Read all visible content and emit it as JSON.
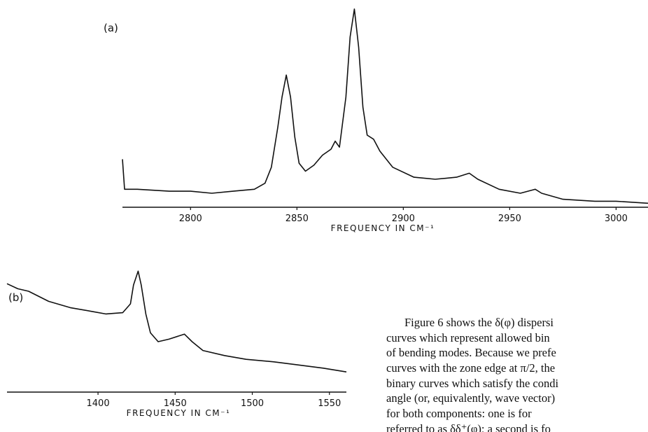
{
  "chart_data": [
    {
      "type": "line",
      "panel_label": "(a)",
      "x_label": "FREQUENCY IN CM⁻¹",
      "x": [
        2768,
        2769,
        2775,
        2790,
        2800,
        2810,
        2820,
        2830,
        2835,
        2838,
        2841,
        2843,
        2845,
        2847,
        2849,
        2851,
        2854,
        2858,
        2862,
        2866,
        2868,
        2870,
        2873,
        2875,
        2877,
        2879,
        2881,
        2883,
        2886,
        2889,
        2895,
        2905,
        2915,
        2925,
        2931,
        2935,
        2945,
        2955,
        2962,
        2965,
        2975,
        2990,
        3000,
        3015
      ],
      "values": [
        24,
        9,
        9,
        8,
        8,
        7,
        8,
        9,
        12,
        20,
        40,
        55,
        66,
        55,
        35,
        22,
        18,
        21,
        26,
        29,
        33,
        30,
        55,
        85,
        99,
        80,
        50,
        36,
        34,
        28,
        20,
        15,
        14,
        15,
        17,
        14,
        9,
        7,
        9,
        7,
        4,
        3,
        3,
        2
      ],
      "color": "#111111",
      "xlim": [
        2768,
        3015
      ],
      "ylim": [
        0,
        100
      ],
      "xticks": [
        2800,
        2850,
        2900,
        2950,
        3000
      ]
    },
    {
      "type": "line",
      "panel_label": "(b)",
      "x_label": "FREQUENCY IN CM⁻¹",
      "x": [
        1341,
        1348,
        1355,
        1368,
        1382,
        1396,
        1405,
        1416,
        1421,
        1423,
        1426,
        1428,
        1431,
        1434,
        1439,
        1446,
        1456,
        1461,
        1468,
        1482,
        1496,
        1514,
        1527,
        1546,
        1561
      ],
      "values": [
        86,
        82,
        80,
        72,
        67,
        64,
        62,
        63,
        70,
        85,
        96,
        85,
        62,
        47,
        40,
        42,
        46,
        40,
        33,
        29,
        26,
        24,
        22,
        19,
        16
      ],
      "color": "#111111",
      "xlim": [
        1341,
        1561
      ],
      "ylim": [
        0,
        100
      ],
      "xticks": [
        1400,
        1450,
        1500,
        1550
      ]
    }
  ],
  "text": {
    "lines": [
      "Figure 6 shows the δ(φ) dispersi",
      "curves which represent allowed bin",
      "of bending modes. Because we prefe",
      "curves with the zone edge at π/2, the",
      "binary curves which satisfy the condi",
      "angle (or, equivalently, wave vector)",
      "for both components: one is for",
      "referred to as δδ⁺(φ); a second is fo"
    ]
  }
}
